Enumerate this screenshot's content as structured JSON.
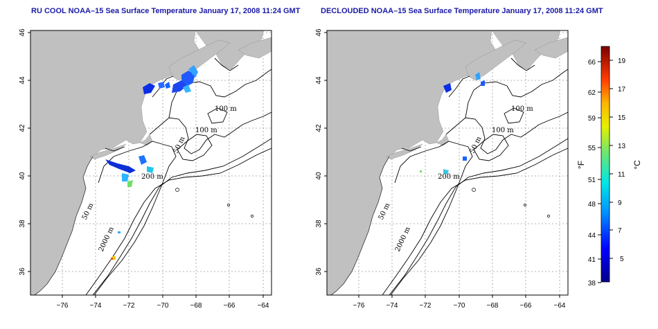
{
  "titles": {
    "left": "RU COOL NOAA–15 Sea Surface Temperature January 17, 2008 11:24 GMT",
    "right": "DECLOUDED NOAA–15 Sea Surface Temperature January 17, 2008 11:24 GMT"
  },
  "axes": {
    "longitude_ticks": [
      "−76",
      "−74",
      "−72",
      "−70",
      "−68",
      "−66",
      "−64"
    ],
    "latitude_ticks": [
      "46",
      "44",
      "42",
      "40",
      "38",
      "36"
    ]
  },
  "contour_labels": {
    "left": [
      "100 m",
      "100 m",
      "50 m",
      "200 m",
      "50 m",
      "2000 m"
    ],
    "right": [
      "100 m",
      "100 m",
      "50 m",
      "200 m",
      "50 m",
      "2000 m"
    ]
  },
  "colorbar": {
    "fahrenheit_unit": "°F",
    "celsius_unit": "°C",
    "fahrenheit_ticks": [
      "66",
      "62",
      "59",
      "55",
      "51",
      "48",
      "44",
      "41",
      "38"
    ],
    "celsius_ticks": [
      "19",
      "17",
      "15",
      "13",
      "11",
      "9",
      "7",
      "5"
    ]
  },
  "colors": {
    "land": "#c0c0c0",
    "ocean": "#ffffff",
    "title": "#1a1aa6",
    "cold": "#0000cc",
    "warm": "#cc0000"
  }
}
